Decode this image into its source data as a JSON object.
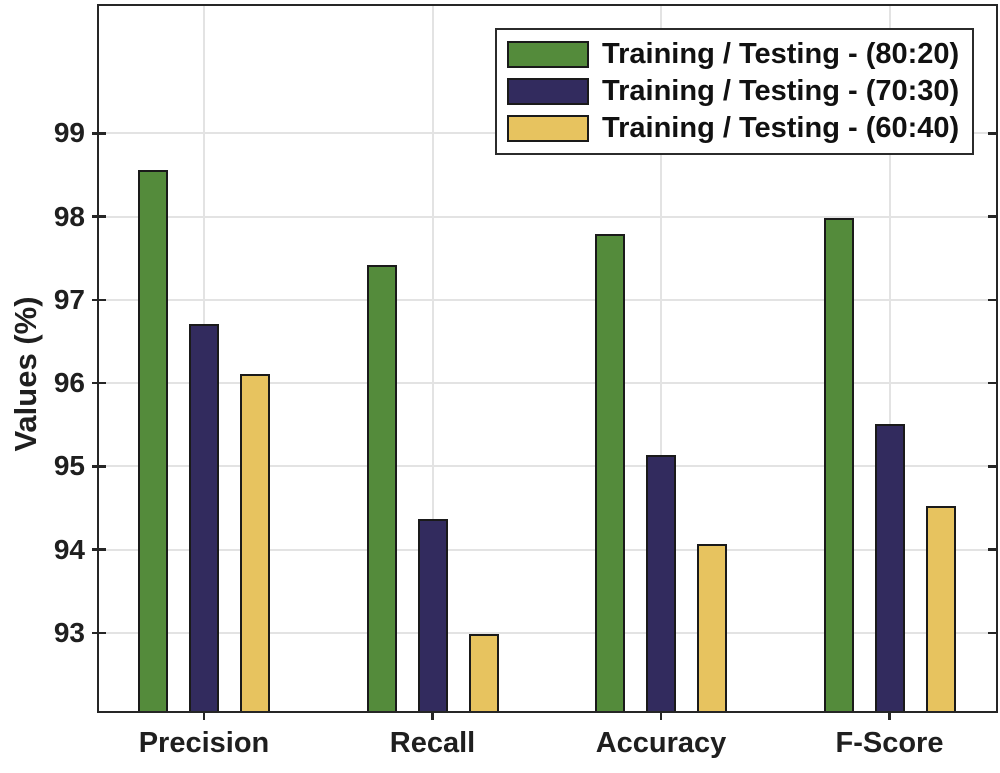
{
  "figure": {
    "background": "#ffffff",
    "axis_color": "#262626",
    "grid_color": "#e3e3e3",
    "text_color": "#1f1f1f",
    "bar_edge_color": "#1a1a1a"
  },
  "chart_data": {
    "type": "bar",
    "title": "",
    "xlabel": "",
    "ylabel": "Values (%)",
    "categories": [
      "Precision",
      "Recall",
      "Accuracy",
      "F-Score"
    ],
    "series": [
      {
        "name": "Training / Testing - (80:20)",
        "color": "#548B3B",
        "values": [
          98.56,
          97.42,
          97.79,
          97.98
        ]
      },
      {
        "name": "Training / Testing - (70:30)",
        "color": "#322B5E",
        "values": [
          96.71,
          94.37,
          95.13,
          95.51
        ]
      },
      {
        "name": "Training / Testing - (60:40)",
        "color": "#E7C35F",
        "values": [
          96.11,
          92.98,
          94.07,
          94.52
        ]
      }
    ],
    "yticks": [
      93,
      94,
      95,
      96,
      97,
      98,
      99
    ],
    "ylim": [
      92.06,
      100.53
    ],
    "grid": true,
    "legend_position": "top-right"
  }
}
